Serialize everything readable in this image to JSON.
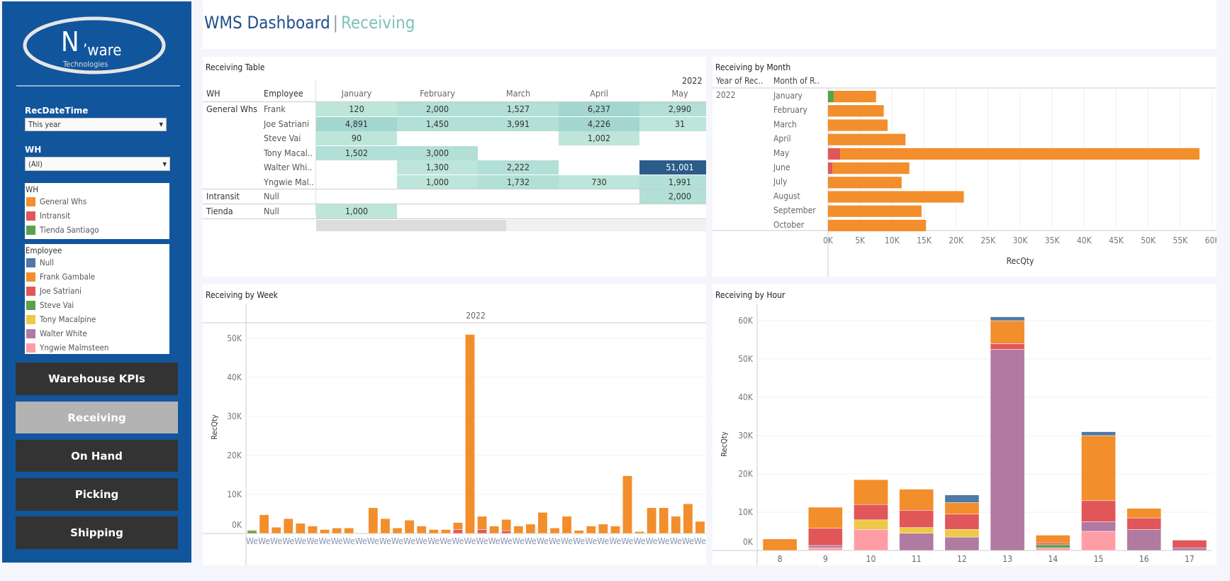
{
  "logo": {
    "text_main": "N'ware",
    "text_sub": "Technologies"
  },
  "header": {
    "title": "WMS Dashboard",
    "separator": "|",
    "subtitle": "Receiving"
  },
  "filters": {
    "recdatetime": {
      "label": "RecDateTime",
      "value": "This year"
    },
    "wh": {
      "label": "WH",
      "value": "(All)"
    }
  },
  "legend_wh": {
    "title": "WH",
    "items": [
      {
        "label": "General Whs",
        "color": "#f28e2b"
      },
      {
        "label": "Intransit",
        "color": "#e15759"
      },
      {
        "label": "Tienda Santiago",
        "color": "#59a14f"
      }
    ]
  },
  "legend_employee": {
    "title": "Employee",
    "items": [
      {
        "label": "Null",
        "color": "#4e79a7"
      },
      {
        "label": "Frank Gambale",
        "color": "#f28e2b"
      },
      {
        "label": "Joe Satriani",
        "color": "#e15759"
      },
      {
        "label": "Steve Vai",
        "color": "#59a14f"
      },
      {
        "label": "Tony Macalpine",
        "color": "#edc948"
      },
      {
        "label": "Walter White",
        "color": "#b07aa1"
      },
      {
        "label": "Yngwie Malmsteen",
        "color": "#ff9da7"
      }
    ]
  },
  "nav": [
    {
      "label": "Warehouse KPIs",
      "active": false
    },
    {
      "label": "Receiving",
      "active": true
    },
    {
      "label": "On Hand",
      "active": false
    },
    {
      "label": "Picking",
      "active": false
    },
    {
      "label": "Shipping",
      "active": false
    }
  ],
  "table": {
    "title": "Receiving Table",
    "year": "2022",
    "col_wh": "WH",
    "col_employee": "Employee",
    "months": [
      "January",
      "February",
      "March",
      "April",
      "May"
    ],
    "rows": [
      {
        "wh": "General Whs",
        "employee": "Frank",
        "values": [
          "120",
          "2,000",
          "1,527",
          "6,237",
          "2,990"
        ]
      },
      {
        "wh": "",
        "employee": "Joe Satriani",
        "values": [
          "4,891",
          "1,450",
          "3,991",
          "4,226",
          "31"
        ]
      },
      {
        "wh": "",
        "employee": "Steve Vai",
        "values": [
          "90",
          "",
          "",
          "1,002",
          ""
        ]
      },
      {
        "wh": "",
        "employee": "Tony Macal..",
        "values": [
          "1,502",
          "3,000",
          "",
          "",
          ""
        ]
      },
      {
        "wh": "",
        "employee": "Walter Whi..",
        "values": [
          "",
          "1,300",
          "2,222",
          "",
          "51,001"
        ]
      },
      {
        "wh": "",
        "employee": "Yngwie Mal..",
        "values": [
          "",
          "1,000",
          "1,732",
          "730",
          "1,991"
        ]
      },
      {
        "wh": "Intransit",
        "employee": "Null",
        "values": [
          "",
          "",
          "",
          "",
          "2,000"
        ]
      },
      {
        "wh": "Tienda",
        "employee": "Null",
        "values": [
          "1,000",
          "",
          "",
          "",
          ""
        ]
      }
    ]
  },
  "chart_data": [
    {
      "type": "bar",
      "orientation": "horizontal",
      "stacked": true,
      "title": "Receiving by Month",
      "row_headers": [
        "Year of Rec..",
        "Month of R.."
      ],
      "year": "2022",
      "categories": [
        "January",
        "February",
        "March",
        "April",
        "May",
        "June",
        "July",
        "August",
        "September",
        "October"
      ],
      "series": [
        {
          "name": "Tienda Santiago",
          "color": "#59a14f",
          "values": [
            900,
            0,
            0,
            0,
            0,
            0,
            0,
            0,
            0,
            0
          ]
        },
        {
          "name": "Intransit",
          "color": "#e15759",
          "values": [
            0,
            0,
            0,
            0,
            1900,
            700,
            0,
            0,
            0,
            0
          ]
        },
        {
          "name": "General Whs",
          "color": "#f28e2b",
          "values": [
            6600,
            8700,
            9300,
            12100,
            56100,
            12000,
            11500,
            21200,
            14600,
            15300
          ]
        }
      ],
      "xlabel": "RecQty",
      "xlim": [
        0,
        60000
      ],
      "ticks": [
        "0K",
        "5K",
        "10K",
        "15K",
        "20K",
        "25K",
        "30K",
        "35K",
        "40K",
        "45K",
        "50K",
        "55K",
        "60K"
      ],
      "grid": true
    },
    {
      "type": "bar",
      "stacked": true,
      "title": "Receiving by Week",
      "column_header": "2022",
      "x_tick_label": "We",
      "ylabel": "RecQty",
      "ylim": [
        0,
        50000
      ],
      "ticks": [
        "0K",
        "10K",
        "20K",
        "30K",
        "40K",
        "50K"
      ],
      "grid": true,
      "series": [
        {
          "name": "Tienda Santiago",
          "color": "#59a14f",
          "values": [
            700,
            0,
            0,
            0,
            0,
            0,
            0,
            0,
            0,
            0,
            0,
            0,
            0,
            0,
            0,
            0,
            0,
            0,
            0,
            0,
            0,
            0,
            0,
            0,
            0,
            0,
            0,
            0,
            0,
            0,
            0,
            0,
            0,
            0,
            0,
            0,
            0,
            0
          ]
        },
        {
          "name": "Intransit",
          "color": "#e15759",
          "values": [
            0,
            0,
            0,
            0,
            0,
            0,
            0,
            0,
            0,
            0,
            0,
            0,
            0,
            0,
            0,
            0,
            0,
            1000,
            0,
            1000,
            0,
            700,
            0,
            0,
            0,
            0,
            0,
            0,
            0,
            0,
            0,
            0,
            0,
            0,
            0,
            0,
            0,
            0
          ]
        },
        {
          "name": "General Whs",
          "color": "#f28e2b",
          "values": [
            200,
            4800,
            1600,
            3800,
            2600,
            1900,
            1000,
            1400,
            1400,
            0,
            6600,
            3800,
            1400,
            3400,
            1900,
            1000,
            1000,
            1800,
            51000,
            3400,
            1900,
            2900,
            1900,
            2400,
            5400,
            1400,
            4400,
            800,
            1900,
            2400,
            1900,
            14800,
            500,
            6600,
            6600,
            4400,
            7600,
            3100
          ]
        }
      ]
    },
    {
      "type": "bar",
      "stacked": true,
      "title": "Receiving by Hour",
      "ylabel": "RecQty",
      "ylim": [
        0,
        60000
      ],
      "categories": [
        "8",
        "9",
        "10",
        "11",
        "12",
        "13",
        "14",
        "15",
        "16",
        "17"
      ],
      "ticks": [
        "0K",
        "10K",
        "20K",
        "30K",
        "40K",
        "50K",
        "60K"
      ],
      "grid": true,
      "series": [
        {
          "name": "Yngwie Malmsteen",
          "color": "#ff9da7",
          "values": [
            0,
            700,
            5500,
            0,
            0,
            0,
            700,
            5000,
            0,
            0
          ]
        },
        {
          "name": "Walter White",
          "color": "#b07aa1",
          "values": [
            0,
            600,
            0,
            4500,
            3500,
            52500,
            0,
            2500,
            5500,
            700
          ]
        },
        {
          "name": "Steve Vai",
          "color": "#59a14f",
          "values": [
            0,
            0,
            0,
            0,
            0,
            0,
            800,
            0,
            0,
            0
          ]
        },
        {
          "name": "Tony Macalpine",
          "color": "#edc948",
          "values": [
            0,
            0,
            2500,
            1500,
            2000,
            0,
            0,
            0,
            0,
            0
          ]
        },
        {
          "name": "Joe Satriani",
          "color": "#e15759",
          "values": [
            0,
            4500,
            4000,
            4500,
            4000,
            1500,
            500,
            5500,
            3000,
            2000
          ]
        },
        {
          "name": "Frank Gambale",
          "color": "#f28e2b",
          "values": [
            3000,
            5500,
            6500,
            5500,
            3000,
            6000,
            2000,
            17000,
            2500,
            0
          ]
        },
        {
          "name": "Null",
          "color": "#4e79a7",
          "values": [
            0,
            0,
            0,
            0,
            2000,
            1000,
            0,
            1000,
            0,
            0
          ]
        }
      ]
    }
  ]
}
